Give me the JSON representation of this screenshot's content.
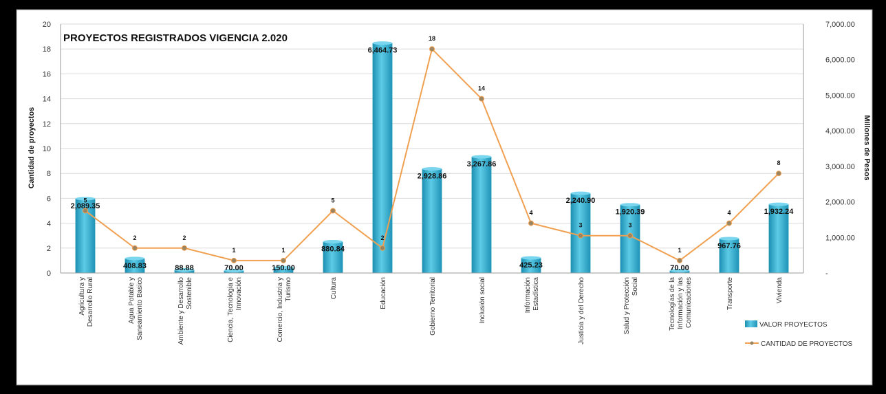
{
  "chart_data": {
    "type": "bar",
    "title": "PROYECTOS REGISTRADOS VIGENCIA 2.020",
    "ylabel_left": "Cantidad de proyectos",
    "ylabel_right": "Millones de Pesos",
    "ylim_left": [
      0,
      20
    ],
    "ylim_right": [
      0,
      7000
    ],
    "yticks_left": [
      "0",
      "2",
      "4",
      "6",
      "8",
      "10",
      "12",
      "14",
      "16",
      "18",
      "20"
    ],
    "yticks_right": [
      "-",
      "1,000.00",
      "2,000.00",
      "3,000.00",
      "4,000.00",
      "5,000.00",
      "6,000.00",
      "7,000.00"
    ],
    "grid": true,
    "legend_position": "bottom-right",
    "categories": [
      "Agricultura y Desarrollo Rural",
      "Agua Potable y Saneamiento Basico",
      "Ambiente y Desarrollo Sostenible",
      "Ciencia, Tecnologia e Innovación",
      "Comercio, Industria y Turismo",
      "Cultura",
      "Educación",
      "Gobierno Territorial",
      "Inclusión social",
      "Información Estadística",
      "Justicia y del Derecho",
      "Salud y Protección Social",
      "Tecnologías de la Información y las Comunicaciones",
      "Transporte",
      "Vivienda"
    ],
    "series": [
      {
        "name": "VALOR PROYECTOS",
        "type": "bar",
        "axis": "right",
        "color": "#2aa6c8",
        "values": [
          2089.35,
          408.83,
          88.88,
          70.0,
          150.0,
          880.84,
          6464.73,
          2928.86,
          3267.86,
          425.23,
          2240.9,
          1920.39,
          70.0,
          967.76,
          1932.24
        ],
        "labels": [
          "2,089.35",
          "408.83",
          "88.88",
          "70.00",
          "150.00",
          "880.84",
          "6,464.73",
          "2,928.86",
          "3,267.86",
          "425.23",
          "2,240.90",
          "1,920.39",
          "70.00",
          "967.76",
          "1,932.24"
        ]
      },
      {
        "name": "CANTIDAD DE PROYECTOS",
        "type": "line",
        "axis": "left",
        "color": "#f0a050",
        "values": [
          5,
          2,
          2,
          1,
          1,
          5,
          2,
          18,
          14,
          4,
          3,
          3,
          1,
          4,
          8
        ],
        "labels": [
          "5",
          "2",
          "2",
          "1",
          "1",
          "5",
          "2",
          "18",
          "14",
          "4",
          "3",
          "3",
          "1",
          "4",
          "8"
        ]
      }
    ]
  }
}
